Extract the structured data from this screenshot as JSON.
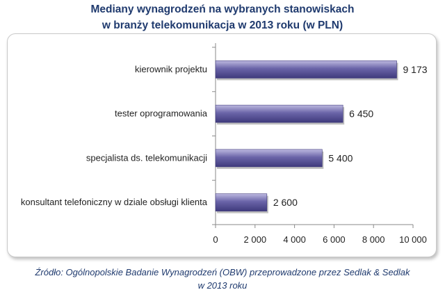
{
  "title_lines": [
    "Mediany wynagrodzeń na wybranych stanowiskach",
    "w branży telekomunikacja w 2013 roku (w PLN)"
  ],
  "source_lines": [
    "Źródło: Ogólnopolskie Badanie Wynagrodzeń (OBW) przeprowadzone przez Sedlak & Sedlak",
    "w 2013 roku"
  ],
  "colors": {
    "bar_main": "#6a64a8",
    "bar_light": "#bdb9e0",
    "bar_dark": "#3f3a7c",
    "title": "#1f3a6e",
    "axis": "#8a8a8a"
  },
  "chart_data": {
    "type": "bar",
    "orientation": "horizontal",
    "categories": [
      "kierownik projektu",
      "tester oprogramowania",
      "specjalista ds. telekomunikacji",
      "konsultant telefoniczny w dziale obsługi klienta"
    ],
    "values": [
      9173,
      6450,
      5400,
      2600
    ],
    "value_labels": [
      "9 173",
      "6 450",
      "5 400",
      "2 600"
    ],
    "xlim": [
      0,
      10000
    ],
    "xticks": [
      0,
      2000,
      4000,
      6000,
      8000,
      10000
    ],
    "xtick_labels": [
      "0",
      "2 000",
      "4 000",
      "6 000",
      "8 000",
      "10 000"
    ],
    "grid": false,
    "legend": "none"
  }
}
